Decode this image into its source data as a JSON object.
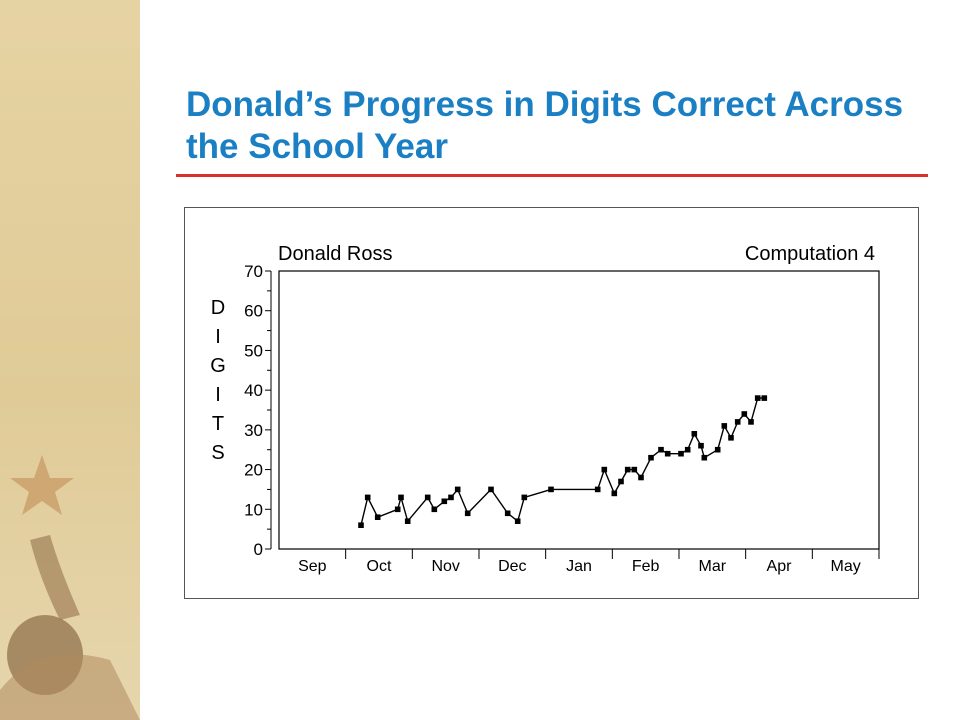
{
  "slide": {
    "title": "Donald’s Progress in Digits Correct Across the School Year"
  },
  "colors": {
    "title": "#1b7fc4",
    "rule": "#d9312b",
    "side_panel": "#e0cb97"
  },
  "chart_data": {
    "type": "line",
    "title": "Donald Ross",
    "subtitle": "Computation 4",
    "ylabel_letters": [
      "D",
      "I",
      "G",
      "I",
      "T",
      "S"
    ],
    "ylim": [
      0,
      70
    ],
    "yticks": [
      "70",
      "60",
      "50",
      "40",
      "30",
      "20",
      "10",
      "0"
    ],
    "months": [
      "Sep",
      "Oct",
      "Nov",
      "Dec",
      "Jan",
      "Feb",
      "Mar",
      "Apr",
      "May"
    ],
    "grid": false,
    "legend": "none",
    "series": [
      {
        "x": [
          1.23,
          1.33,
          1.48,
          1.78,
          1.83,
          1.93,
          2.23,
          2.33,
          2.48,
          2.58,
          2.68,
          2.83,
          3.18,
          3.43,
          3.58,
          3.68,
          4.08,
          4.78,
          4.88,
          5.03,
          5.13,
          5.23,
          5.33,
          5.43,
          5.58,
          5.73,
          5.83,
          6.03,
          6.13,
          6.23,
          6.33,
          6.38,
          6.58,
          6.68,
          6.78,
          6.88,
          6.98,
          7.08,
          7.18,
          7.28
        ],
        "y": [
          6,
          13,
          8,
          10,
          13,
          7,
          13,
          10,
          12,
          13,
          15,
          9,
          15,
          9,
          7,
          13,
          15,
          15,
          20,
          14,
          17,
          20,
          20,
          18,
          23,
          25,
          24,
          24,
          25,
          29,
          26,
          23,
          25,
          31,
          28,
          32,
          34,
          32,
          38,
          38
        ]
      }
    ]
  }
}
